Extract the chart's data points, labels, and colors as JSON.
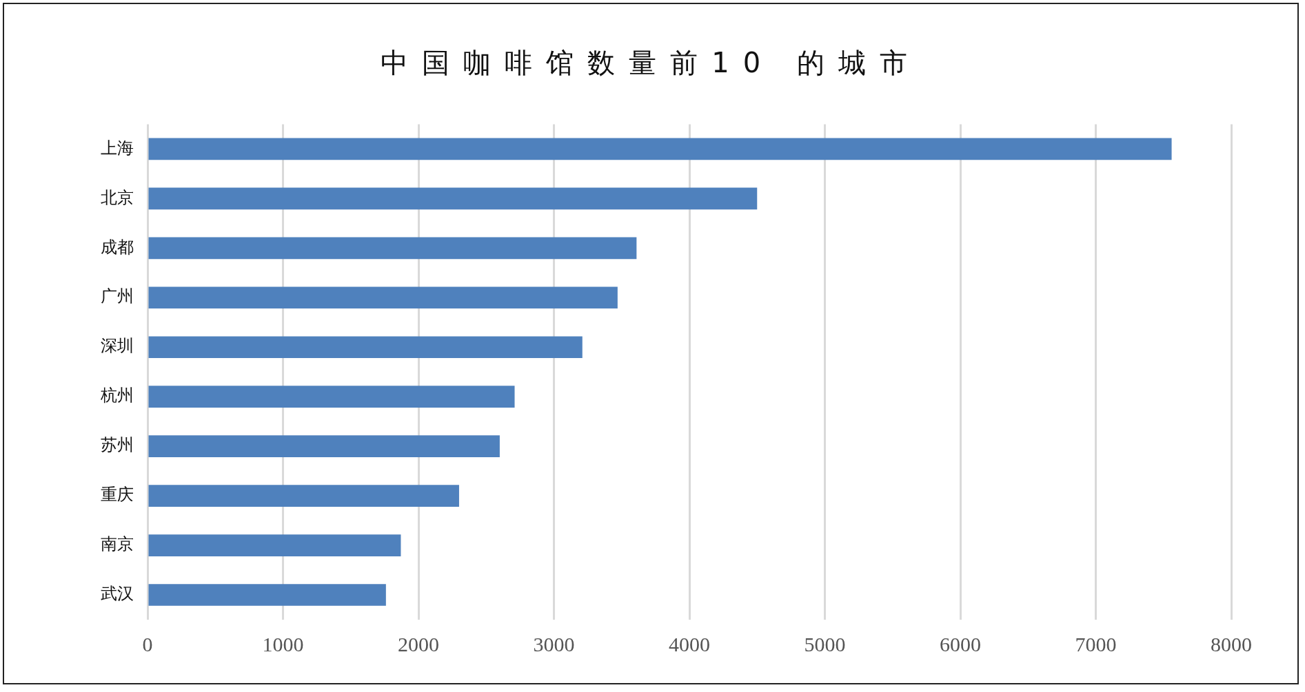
{
  "chart_data": {
    "type": "bar",
    "orientation": "horizontal",
    "title": "中国咖啡馆数量前10 的城市",
    "categories": [
      "上海",
      "北京",
      "成都",
      "广州",
      "深圳",
      "杭州",
      "苏州",
      "重庆",
      "南京",
      "武汉"
    ],
    "values": [
      7560,
      4500,
      3610,
      3470,
      3210,
      2710,
      2600,
      2300,
      1870,
      1760
    ],
    "color": "#4f81bd",
    "xlim": [
      0,
      8000
    ],
    "xticks": [
      0,
      1000,
      2000,
      3000,
      4000,
      5000,
      6000,
      7000,
      8000
    ],
    "grid": "x",
    "legend": false
  }
}
